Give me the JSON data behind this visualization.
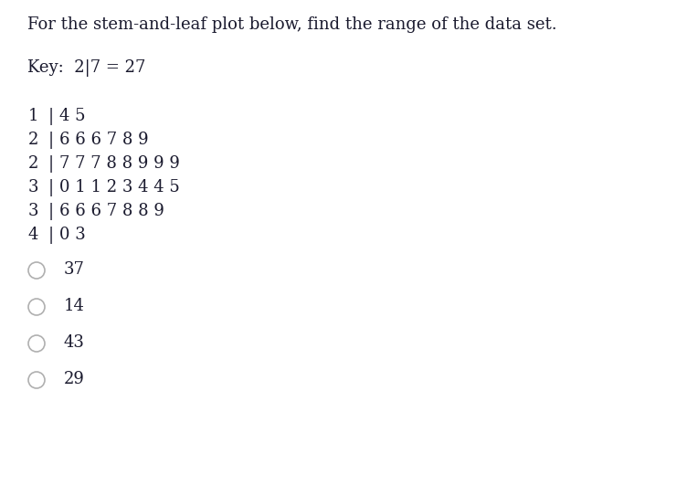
{
  "title": "For the stem-and-leaf plot below, find the range of the data set.",
  "key_text": "Key:  2|7 = 27",
  "stem_rows": [
    {
      "stem": "1",
      "leaves": "4 5"
    },
    {
      "stem": "2",
      "leaves": "6 6 6 7 8 9"
    },
    {
      "stem": "2",
      "leaves": "7 7 7 8 8 9 9 9"
    },
    {
      "stem": "3",
      "leaves": "0 1 1 2 3 4 4 5"
    },
    {
      "stem": "3",
      "leaves": "6 6 6 7 8 8 9"
    },
    {
      "stem": "4",
      "leaves": "0 3"
    }
  ],
  "choices": [
    "37",
    "14",
    "43",
    "29"
  ],
  "background_color": "#ffffff",
  "text_color": "#1a1a2e",
  "font_size_title": 13.0,
  "font_size_key": 13.0,
  "font_size_stem": 13.0,
  "font_size_choice": 13.0
}
